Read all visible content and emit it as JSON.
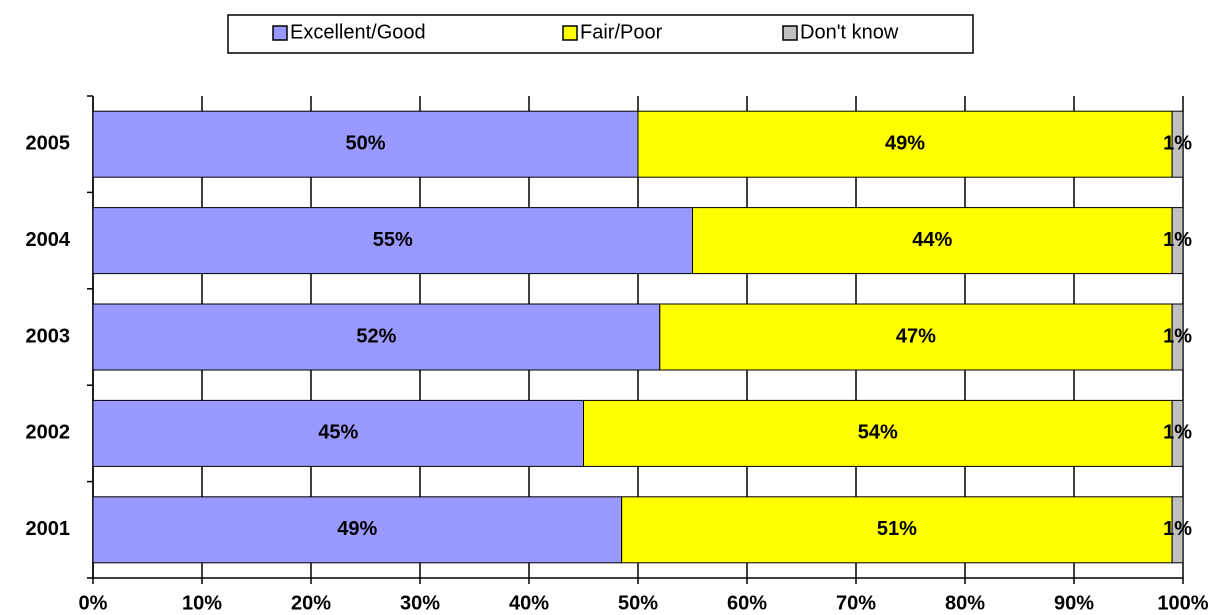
{
  "chart_data": {
    "type": "stacked-bar-horizontal",
    "categories": [
      "2005",
      "2004",
      "2003",
      "2002",
      "2001"
    ],
    "series": [
      {
        "name": "Excellent/Good",
        "color": "#9999ff",
        "values": [
          50,
          55,
          52,
          45,
          48.5
        ],
        "value_labels": [
          "50%",
          "55%",
          "52%",
          "45%",
          "49%"
        ]
      },
      {
        "name": "Fair/Poor",
        "color": "#ffff00",
        "values": [
          49,
          44,
          47,
          54,
          50.5
        ],
        "value_labels": [
          "49%",
          "44%",
          "47%",
          "54%",
          "51%"
        ]
      },
      {
        "name": "Don't know",
        "color": "#c0c0c0",
        "values": [
          1,
          1,
          1,
          1,
          1
        ],
        "value_labels": [
          "1%",
          "1%",
          "1%",
          "1%",
          "1%"
        ]
      }
    ],
    "xlim": [
      0,
      100
    ],
    "xticks": [
      {
        "value": 0,
        "label": "0%"
      },
      {
        "value": 10,
        "label": "10%"
      },
      {
        "value": 20,
        "label": "20%"
      },
      {
        "value": 30,
        "label": "30%"
      },
      {
        "value": 40,
        "label": "40%"
      },
      {
        "value": 50,
        "label": "50%"
      },
      {
        "value": 60,
        "label": "60%"
      },
      {
        "value": 70,
        "label": "70%"
      },
      {
        "value": 80,
        "label": "80%"
      },
      {
        "value": 90,
        "label": "90%"
      },
      {
        "value": 100,
        "label": "100%"
      }
    ],
    "grid": true,
    "legend": "top"
  }
}
